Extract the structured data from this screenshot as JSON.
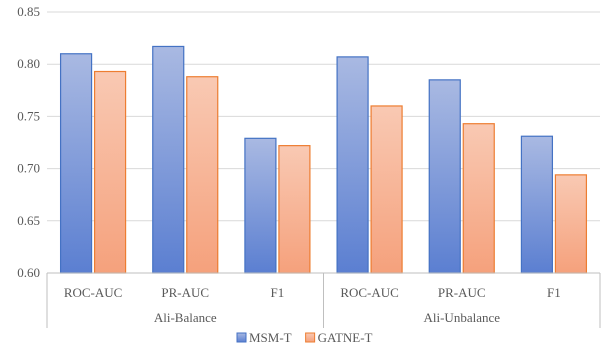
{
  "chart_data": {
    "type": "bar",
    "groups": [
      {
        "label": "Ali-Balance",
        "categories": [
          "ROC-AUC",
          "PR-AUC",
          "F1"
        ]
      },
      {
        "label": "Ali-Unbalance",
        "categories": [
          "ROC-AUC",
          "PR-AUC",
          "F1"
        ]
      }
    ],
    "series": [
      {
        "name": "MSM-T",
        "values": [
          0.81,
          0.817,
          0.729,
          0.807,
          0.785,
          0.731
        ]
      },
      {
        "name": "GATNE-T",
        "values": [
          0.793,
          0.788,
          0.722,
          0.76,
          0.743,
          0.694
        ]
      }
    ],
    "ylim": [
      0.6,
      0.85
    ],
    "yticks": [
      "0.60",
      "0.65",
      "0.70",
      "0.75",
      "0.80",
      "0.85"
    ],
    "grid": true,
    "legend_position": "bottom",
    "title": "",
    "xlabel": "",
    "ylabel": "",
    "colors": {
      "series": [
        {
          "top": "#a9b9e2",
          "bottom": "#5b7fd1",
          "stroke": "#4472c4"
        },
        {
          "top": "#f9c9b3",
          "bottom": "#f5a17c",
          "stroke": "#ed7d31"
        }
      ],
      "grid": "#d9d9d9",
      "axis": "#bfbfbf"
    }
  }
}
